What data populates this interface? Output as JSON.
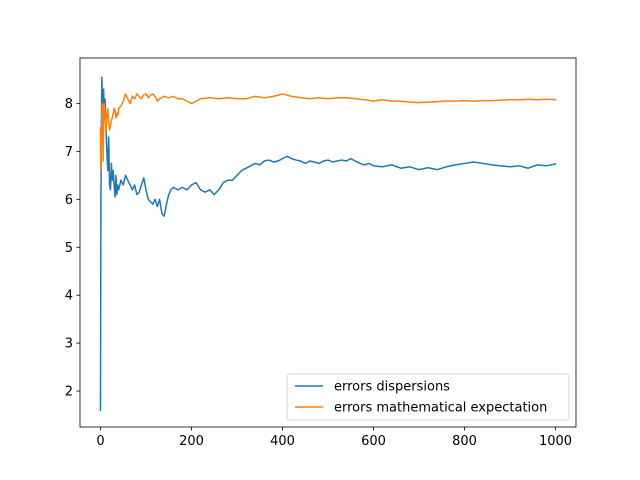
{
  "chart_data": {
    "type": "line",
    "title": "",
    "xlabel": "",
    "ylabel": "",
    "xlim": [
      -45,
      1045
    ],
    "ylim": [
      1.25,
      8.95
    ],
    "xticks": [
      0,
      200,
      400,
      600,
      800,
      1000
    ],
    "yticks": [
      2,
      3,
      4,
      5,
      6,
      7,
      8
    ],
    "grid": false,
    "legend_position": "lower-right",
    "series": [
      {
        "name": "errors dispersions",
        "color": "#1f77b4",
        "x": [
          0,
          1,
          2,
          3,
          4,
          5,
          6,
          7,
          8,
          10,
          12,
          14,
          16,
          18,
          20,
          22,
          24,
          26,
          28,
          30,
          32,
          34,
          36,
          38,
          40,
          45,
          50,
          55,
          60,
          65,
          70,
          75,
          80,
          85,
          90,
          95,
          100,
          105,
          110,
          115,
          120,
          125,
          130,
          135,
          140,
          145,
          150,
          155,
          160,
          170,
          180,
          190,
          200,
          210,
          220,
          230,
          240,
          250,
          260,
          270,
          280,
          290,
          300,
          310,
          320,
          330,
          340,
          350,
          360,
          370,
          380,
          390,
          400,
          410,
          420,
          430,
          440,
          450,
          460,
          470,
          480,
          490,
          500,
          510,
          520,
          530,
          540,
          550,
          560,
          570,
          580,
          590,
          600,
          620,
          640,
          660,
          680,
          700,
          720,
          740,
          760,
          780,
          800,
          820,
          840,
          860,
          880,
          900,
          920,
          940,
          960,
          980,
          1000
        ],
        "y": [
          1.6,
          6.0,
          7.6,
          8.55,
          8.2,
          7.4,
          8.1,
          8.3,
          7.7,
          8.1,
          7.5,
          7.0,
          6.6,
          7.3,
          6.3,
          6.2,
          6.75,
          6.4,
          6.6,
          6.3,
          6.05,
          6.5,
          6.1,
          6.3,
          6.2,
          6.4,
          6.3,
          6.5,
          6.4,
          6.3,
          6.2,
          6.3,
          6.1,
          6.15,
          6.3,
          6.45,
          6.2,
          6.0,
          5.95,
          5.9,
          6.0,
          5.85,
          6.0,
          5.7,
          5.65,
          5.9,
          6.1,
          6.2,
          6.25,
          6.2,
          6.25,
          6.2,
          6.3,
          6.35,
          6.2,
          6.15,
          6.2,
          6.1,
          6.2,
          6.35,
          6.4,
          6.4,
          6.5,
          6.6,
          6.65,
          6.7,
          6.75,
          6.72,
          6.8,
          6.82,
          6.78,
          6.8,
          6.85,
          6.9,
          6.85,
          6.82,
          6.8,
          6.75,
          6.8,
          6.78,
          6.75,
          6.8,
          6.82,
          6.78,
          6.8,
          6.82,
          6.8,
          6.85,
          6.8,
          6.75,
          6.72,
          6.75,
          6.7,
          6.68,
          6.72,
          6.65,
          6.68,
          6.62,
          6.66,
          6.62,
          6.68,
          6.72,
          6.75,
          6.78,
          6.75,
          6.72,
          6.7,
          6.68,
          6.7,
          6.65,
          6.72,
          6.7,
          6.74
        ]
      },
      {
        "name": "errors mathematical expectation",
        "color": "#ff7f0e",
        "x": [
          0,
          1,
          2,
          3,
          4,
          5,
          6,
          7,
          8,
          10,
          12,
          14,
          16,
          18,
          20,
          22,
          24,
          26,
          28,
          30,
          32,
          34,
          36,
          38,
          40,
          45,
          50,
          55,
          60,
          65,
          70,
          75,
          80,
          85,
          90,
          95,
          100,
          105,
          110,
          115,
          120,
          125,
          130,
          140,
          150,
          160,
          170,
          180,
          190,
          200,
          210,
          220,
          240,
          260,
          280,
          300,
          320,
          340,
          360,
          380,
          400,
          420,
          440,
          460,
          480,
          500,
          520,
          540,
          560,
          580,
          600,
          620,
          640,
          660,
          680,
          700,
          720,
          740,
          760,
          780,
          800,
          820,
          840,
          860,
          880,
          900,
          920,
          940,
          960,
          980,
          1000
        ],
        "y": [
          7.5,
          6.6,
          7.1,
          7.8,
          8.0,
          7.7,
          6.8,
          7.6,
          8.0,
          7.8,
          7.4,
          7.75,
          7.9,
          7.6,
          7.45,
          7.55,
          7.65,
          7.7,
          7.8,
          7.9,
          7.85,
          7.7,
          7.8,
          7.75,
          7.9,
          7.95,
          8.05,
          8.2,
          8.1,
          8.0,
          8.15,
          8.1,
          8.2,
          8.15,
          8.1,
          8.18,
          8.2,
          8.12,
          8.18,
          8.2,
          8.15,
          8.05,
          8.1,
          8.15,
          8.12,
          8.15,
          8.1,
          8.1,
          8.05,
          8.0,
          8.05,
          8.1,
          8.12,
          8.1,
          8.12,
          8.1,
          8.1,
          8.15,
          8.12,
          8.15,
          8.2,
          8.15,
          8.12,
          8.1,
          8.12,
          8.1,
          8.12,
          8.12,
          8.1,
          8.08,
          8.05,
          8.08,
          8.05,
          8.05,
          8.03,
          8.02,
          8.03,
          8.04,
          8.05,
          8.05,
          8.06,
          8.05,
          8.06,
          8.06,
          8.07,
          8.08,
          8.08,
          8.09,
          8.08,
          8.09,
          8.08
        ]
      }
    ]
  }
}
